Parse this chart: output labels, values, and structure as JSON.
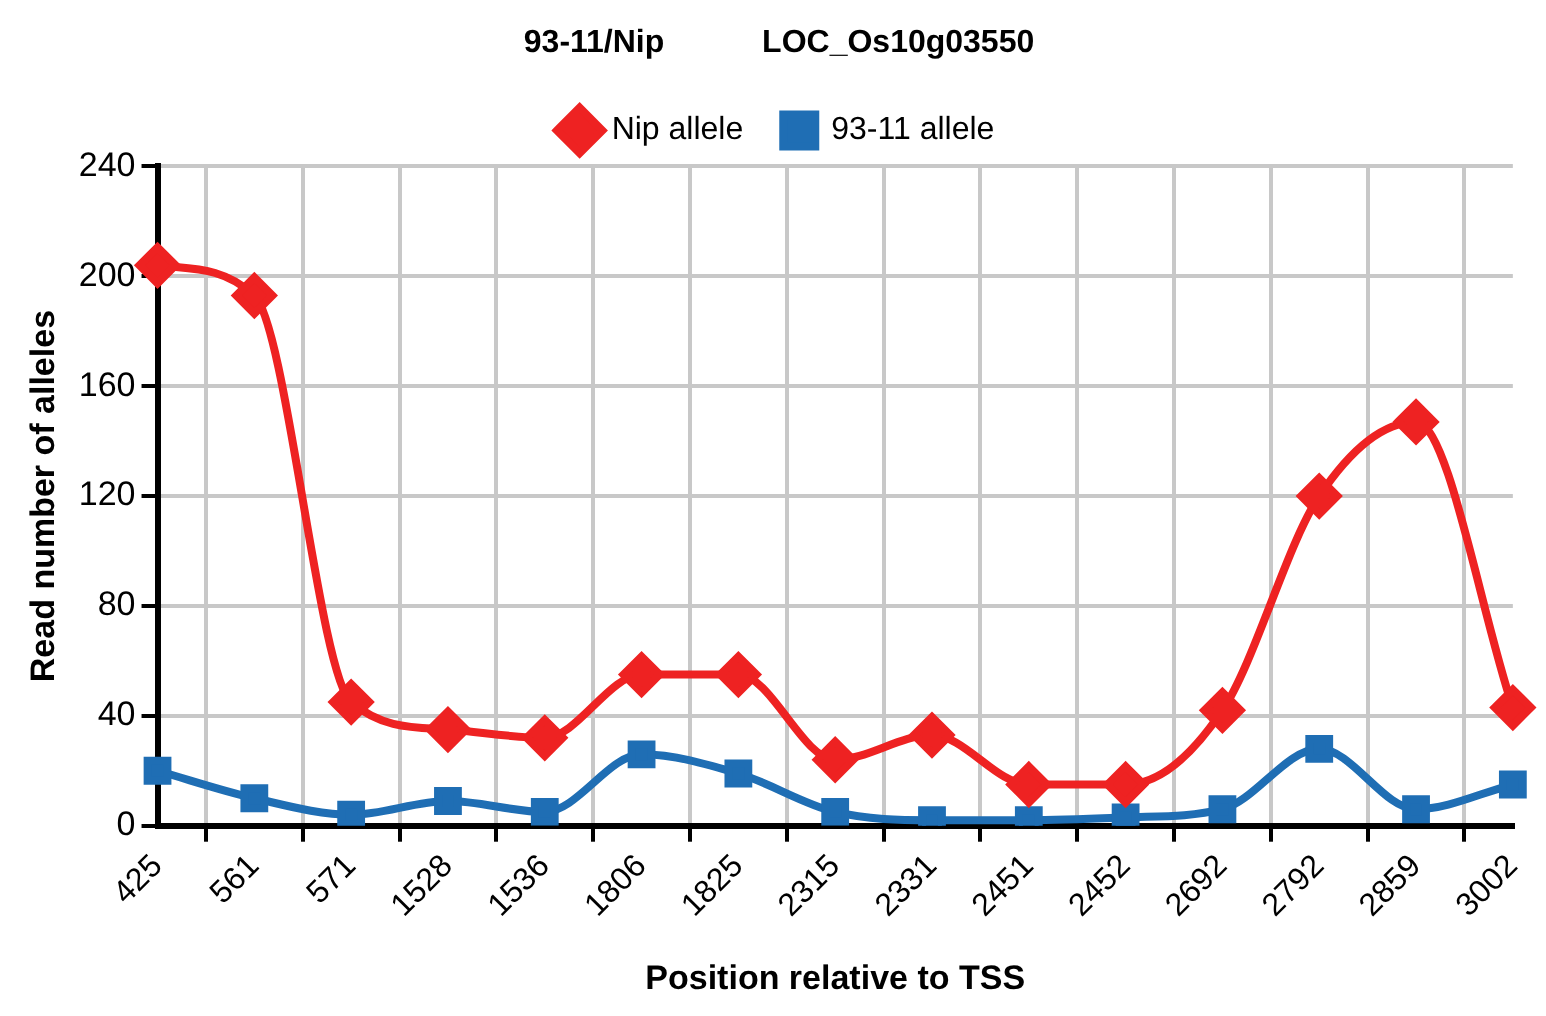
{
  "chart_data": {
    "type": "line",
    "title": "93-11/Nip           LOC_Os10g03550",
    "xlabel": "Position relative to TSS",
    "ylabel": "Read number of alleles",
    "categories": [
      "425",
      "561",
      "571",
      "1528",
      "1536",
      "1806",
      "1825",
      "2315",
      "2331",
      "2451",
      "2452",
      "2692",
      "2792",
      "2859",
      "3002"
    ],
    "series": [
      {
        "name": "Nip allele",
        "color": "#ee2222",
        "marker": "diamond",
        "values": [
          204,
          193,
          45,
          35,
          32,
          55,
          55,
          24,
          33,
          15,
          15,
          42,
          120,
          147,
          43
        ]
      },
      {
        "name": "93-11 allele",
        "color": "#1f6eb4",
        "marker": "square",
        "values": [
          20,
          10,
          4,
          9,
          5,
          26,
          19,
          5,
          2,
          2,
          3,
          6,
          28,
          6,
          15
        ]
      }
    ],
    "ylim": [
      0,
      240
    ],
    "yticks": [
      0,
      40,
      80,
      120,
      160,
      200,
      240
    ],
    "grid": true,
    "legend": "top"
  }
}
